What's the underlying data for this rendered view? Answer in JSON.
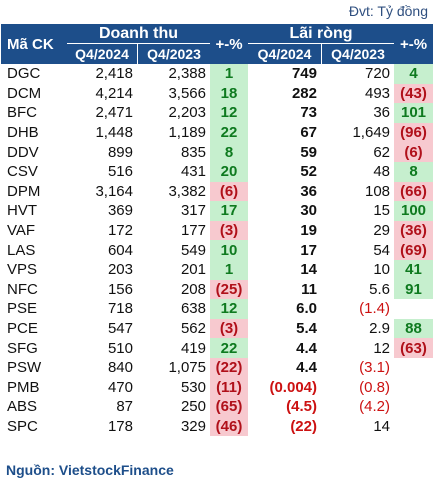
{
  "unit_label": "Đvt: Tỷ đồng",
  "headers": {
    "ticker": "Mã CK",
    "revenue_group": "Doanh thu",
    "profit_group": "Lãi ròng",
    "pct": "+-%",
    "q4_2024": "Q4/2024",
    "q4_2023": "Q4/2023"
  },
  "rows": [
    {
      "ticker": "DGC",
      "rev_2024": "2,418",
      "rev_2023": "2,388",
      "rev_pct": "1",
      "rev_pct_sign": "pos",
      "np_2024": "749",
      "np_2024_neg": false,
      "np_2023": "720",
      "np_2023_neg": false,
      "np_pct": "4",
      "np_pct_sign": "pos"
    },
    {
      "ticker": "DCM",
      "rev_2024": "4,214",
      "rev_2023": "3,566",
      "rev_pct": "18",
      "rev_pct_sign": "pos",
      "np_2024": "282",
      "np_2024_neg": false,
      "np_2023": "493",
      "np_2023_neg": false,
      "np_pct": "(43)",
      "np_pct_sign": "neg"
    },
    {
      "ticker": "BFC",
      "rev_2024": "2,471",
      "rev_2023": "2,203",
      "rev_pct": "12",
      "rev_pct_sign": "pos",
      "np_2024": "73",
      "np_2024_neg": false,
      "np_2023": "36",
      "np_2023_neg": false,
      "np_pct": "101",
      "np_pct_sign": "pos"
    },
    {
      "ticker": "DHB",
      "rev_2024": "1,448",
      "rev_2023": "1,189",
      "rev_pct": "22",
      "rev_pct_sign": "pos",
      "np_2024": "67",
      "np_2024_neg": false,
      "np_2023": "1,649",
      "np_2023_neg": false,
      "np_pct": "(96)",
      "np_pct_sign": "neg"
    },
    {
      "ticker": "DDV",
      "rev_2024": "899",
      "rev_2023": "835",
      "rev_pct": "8",
      "rev_pct_sign": "pos",
      "np_2024": "59",
      "np_2024_neg": false,
      "np_2023": "62",
      "np_2023_neg": false,
      "np_pct": "(6)",
      "np_pct_sign": "neg"
    },
    {
      "ticker": "CSV",
      "rev_2024": "516",
      "rev_2023": "431",
      "rev_pct": "20",
      "rev_pct_sign": "pos",
      "np_2024": "52",
      "np_2024_neg": false,
      "np_2023": "48",
      "np_2023_neg": false,
      "np_pct": "8",
      "np_pct_sign": "pos"
    },
    {
      "ticker": "DPM",
      "rev_2024": "3,164",
      "rev_2023": "3,382",
      "rev_pct": "(6)",
      "rev_pct_sign": "neg",
      "np_2024": "36",
      "np_2024_neg": false,
      "np_2023": "108",
      "np_2023_neg": false,
      "np_pct": "(66)",
      "np_pct_sign": "neg"
    },
    {
      "ticker": "HVT",
      "rev_2024": "369",
      "rev_2023": "317",
      "rev_pct": "17",
      "rev_pct_sign": "pos",
      "np_2024": "30",
      "np_2024_neg": false,
      "np_2023": "15",
      "np_2023_neg": false,
      "np_pct": "100",
      "np_pct_sign": "pos"
    },
    {
      "ticker": "VAF",
      "rev_2024": "172",
      "rev_2023": "177",
      "rev_pct": "(3)",
      "rev_pct_sign": "neg",
      "np_2024": "19",
      "np_2024_neg": false,
      "np_2023": "29",
      "np_2023_neg": false,
      "np_pct": "(36)",
      "np_pct_sign": "neg"
    },
    {
      "ticker": "LAS",
      "rev_2024": "604",
      "rev_2023": "549",
      "rev_pct": "10",
      "rev_pct_sign": "pos",
      "np_2024": "17",
      "np_2024_neg": false,
      "np_2023": "54",
      "np_2023_neg": false,
      "np_pct": "(69)",
      "np_pct_sign": "neg"
    },
    {
      "ticker": "VPS",
      "rev_2024": "203",
      "rev_2023": "201",
      "rev_pct": "1",
      "rev_pct_sign": "pos",
      "np_2024": "14",
      "np_2024_neg": false,
      "np_2023": "10",
      "np_2023_neg": false,
      "np_pct": "41",
      "np_pct_sign": "pos"
    },
    {
      "ticker": "NFC",
      "rev_2024": "156",
      "rev_2023": "208",
      "rev_pct": "(25)",
      "rev_pct_sign": "neg",
      "np_2024": "11",
      "np_2024_neg": false,
      "np_2023": "5.6",
      "np_2023_neg": false,
      "np_pct": "91",
      "np_pct_sign": "pos"
    },
    {
      "ticker": "PSE",
      "rev_2024": "718",
      "rev_2023": "638",
      "rev_pct": "12",
      "rev_pct_sign": "pos",
      "np_2024": "6.0",
      "np_2024_neg": false,
      "np_2023": "(1.4)",
      "np_2023_neg": true,
      "np_pct": "",
      "np_pct_sign": "none"
    },
    {
      "ticker": "PCE",
      "rev_2024": "547",
      "rev_2023": "562",
      "rev_pct": "(3)",
      "rev_pct_sign": "neg",
      "np_2024": "5.4",
      "np_2024_neg": false,
      "np_2023": "2.9",
      "np_2023_neg": false,
      "np_pct": "88",
      "np_pct_sign": "pos"
    },
    {
      "ticker": "SFG",
      "rev_2024": "510",
      "rev_2023": "419",
      "rev_pct": "22",
      "rev_pct_sign": "pos",
      "np_2024": "4.4",
      "np_2024_neg": false,
      "np_2023": "12",
      "np_2023_neg": false,
      "np_pct": "(63)",
      "np_pct_sign": "neg"
    },
    {
      "ticker": "PSW",
      "rev_2024": "840",
      "rev_2023": "1,075",
      "rev_pct": "(22)",
      "rev_pct_sign": "neg",
      "np_2024": "4.4",
      "np_2024_neg": false,
      "np_2023": "(3.1)",
      "np_2023_neg": true,
      "np_pct": "",
      "np_pct_sign": "none"
    },
    {
      "ticker": "PMB",
      "rev_2024": "470",
      "rev_2023": "530",
      "rev_pct": "(11)",
      "rev_pct_sign": "neg",
      "np_2024": "(0.004)",
      "np_2024_neg": true,
      "np_2023": "(0.8)",
      "np_2023_neg": true,
      "np_pct": "",
      "np_pct_sign": "none"
    },
    {
      "ticker": "ABS",
      "rev_2024": "87",
      "rev_2023": "250",
      "rev_pct": "(65)",
      "rev_pct_sign": "neg",
      "np_2024": "(4.5)",
      "np_2024_neg": true,
      "np_2023": "(4.2)",
      "np_2023_neg": true,
      "np_pct": "",
      "np_pct_sign": "none"
    },
    {
      "ticker": "SPC",
      "rev_2024": "178",
      "rev_2023": "329",
      "rev_pct": "(46)",
      "rev_pct_sign": "neg",
      "np_2024": "(22)",
      "np_2024_neg": true,
      "np_2023": "14",
      "np_2023_neg": false,
      "np_pct": "",
      "np_pct_sign": "none"
    }
  ],
  "source": "Nguồn: VietstockFinance",
  "colors": {
    "header_bg": "#1d4e8a",
    "positive_bg": "#c6efce",
    "positive_text": "#0e7a1f",
    "negative_bg": "#f7c9cf",
    "negative_text": "#b0101a",
    "negative_number": "#cc1111"
  }
}
